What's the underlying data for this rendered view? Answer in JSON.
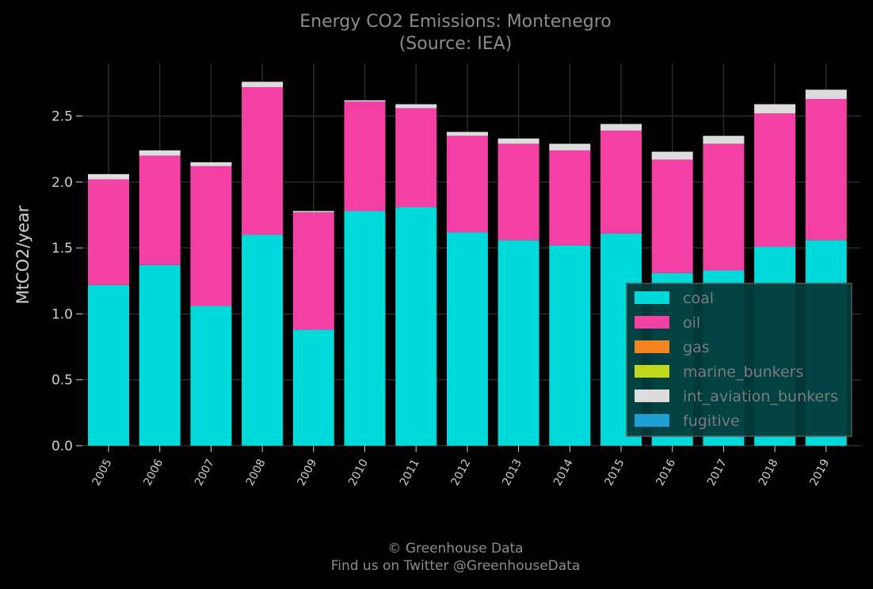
{
  "chart_data": {
    "type": "bar",
    "stacked": true,
    "title": "Energy CO2 Emissions: Montenegro",
    "subtitle": "(Source: IEA)",
    "xlabel": "",
    "ylabel": "MtCO2/year",
    "ylim": [
      0,
      2.9
    ],
    "yticks": [
      0.0,
      0.5,
      1.0,
      1.5,
      2.0,
      2.5
    ],
    "ytick_labels": [
      "0.0",
      "0.5",
      "1.0",
      "1.5",
      "2.0",
      "2.5"
    ],
    "grid": true,
    "legend_position": "bottom-right",
    "categories": [
      "2005",
      "2006",
      "2007",
      "2008",
      "2009",
      "2010",
      "2011",
      "2012",
      "2013",
      "2014",
      "2015",
      "2016",
      "2017",
      "2018",
      "2019"
    ],
    "series": [
      {
        "name": "coal",
        "color": "#00D9D9",
        "values": [
          1.22,
          1.37,
          1.06,
          1.6,
          0.88,
          1.78,
          1.81,
          1.62,
          1.56,
          1.52,
          1.61,
          1.31,
          1.33,
          1.51,
          1.56
        ]
      },
      {
        "name": "oil",
        "color": "#F43FA5",
        "values": [
          0.8,
          0.83,
          1.06,
          1.12,
          0.89,
          0.83,
          0.75,
          0.73,
          0.73,
          0.72,
          0.78,
          0.86,
          0.96,
          1.01,
          1.07
        ]
      },
      {
        "name": "gas",
        "color": "#F7851F",
        "values": [
          0,
          0,
          0,
          0,
          0,
          0,
          0,
          0,
          0,
          0,
          0,
          0,
          0,
          0,
          0
        ]
      },
      {
        "name": "marine_bunkers",
        "color": "#C2D81A",
        "values": [
          0,
          0,
          0,
          0,
          0,
          0,
          0,
          0,
          0,
          0,
          0,
          0,
          0,
          0,
          0
        ]
      },
      {
        "name": "int_aviation_bunkers",
        "color": "#DCDCDC",
        "values": [
          0.04,
          0.04,
          0.03,
          0.04,
          0.01,
          0.01,
          0.03,
          0.03,
          0.04,
          0.05,
          0.05,
          0.06,
          0.06,
          0.07,
          0.07
        ]
      },
      {
        "name": "fugitive",
        "color": "#1E9FD6",
        "values": [
          0,
          0,
          0,
          0,
          0,
          0,
          0,
          0,
          0,
          0,
          0,
          0,
          0,
          0,
          0
        ]
      }
    ]
  },
  "footer": {
    "copyright": "© Greenhouse Data",
    "twitter": "Find us on Twitter @GreenhouseData"
  },
  "colors": {
    "background": "#000000",
    "grid": "#2A2A2A",
    "title_text": "#8C8C8C",
    "axis_text": "#D0D0D0",
    "legend_bg": "#043C3C",
    "legend_border": "#5A5A5A",
    "legend_text": "#7A7A7A"
  }
}
